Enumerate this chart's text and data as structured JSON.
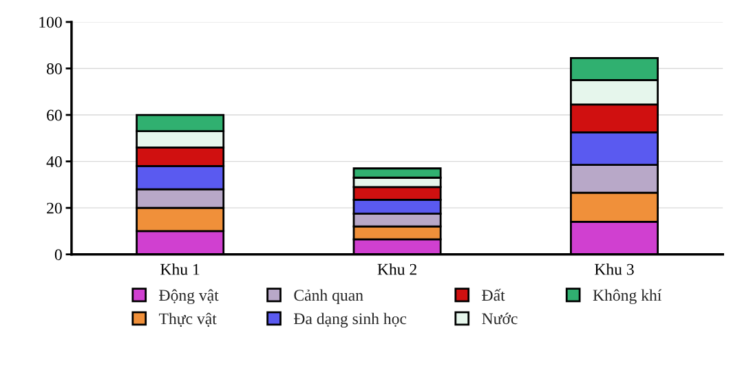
{
  "chart_data": {
    "type": "bar",
    "stacked": true,
    "categories": [
      "Khu 1",
      "Khu 2",
      "Khu 3"
    ],
    "series": [
      {
        "name": "Động vật",
        "color": "#d040d0",
        "values": [
          10,
          6.5,
          14
        ]
      },
      {
        "name": "Thực vật",
        "color": "#f0903a",
        "values": [
          10,
          5.5,
          12.5
        ]
      },
      {
        "name": "Cảnh quan",
        "color": "#b8a8c8",
        "values": [
          8,
          5.5,
          12
        ]
      },
      {
        "name": "Đa dạng sinh học",
        "color": "#5a5af0",
        "values": [
          10,
          6,
          14
        ]
      },
      {
        "name": "Đất",
        "color": "#d01010",
        "values": [
          8,
          5.5,
          12
        ]
      },
      {
        "name": "Nước",
        "color": "#e6f6ec",
        "values": [
          7,
          4,
          10.5
        ]
      },
      {
        "name": "Không khí",
        "color": "#30b070",
        "values": [
          7,
          4,
          9.5
        ]
      }
    ],
    "ylim": [
      0,
      100
    ],
    "yticks": [
      0,
      20,
      40,
      60,
      80,
      100
    ],
    "grid": "y",
    "legend": "bottom"
  }
}
